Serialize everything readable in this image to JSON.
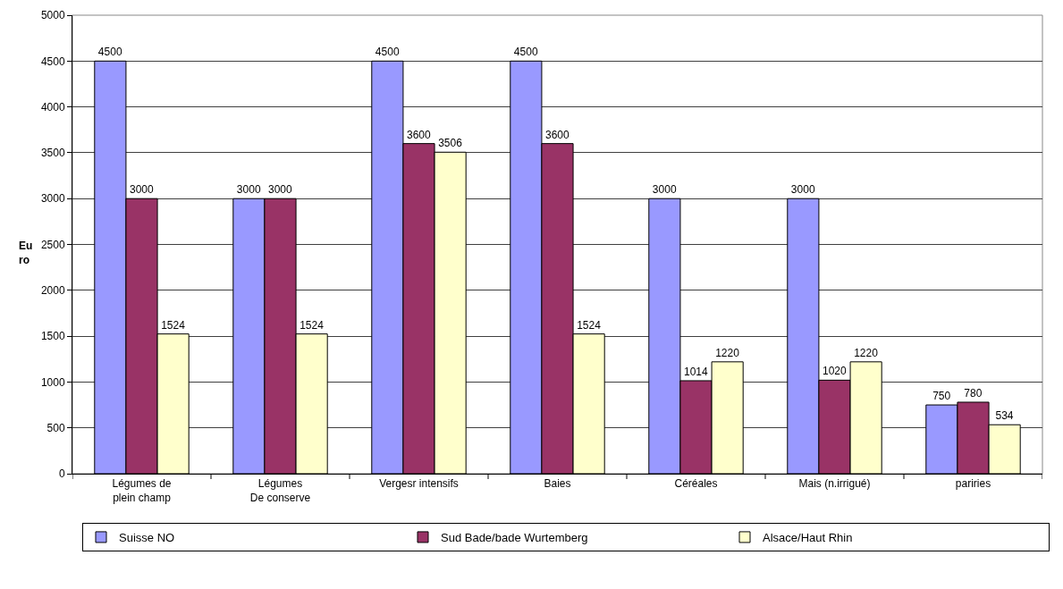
{
  "chart_data": {
    "type": "bar",
    "ylabel": "Eu\nro",
    "categories": [
      "Légumes de\nplein champ",
      "Légumes\nDe conserve",
      "Vergesr intensifs",
      "Baies",
      "Céréales",
      "Mais (n.irrigué)",
      "pariries"
    ],
    "series": [
      {
        "name": "Suisse NO",
        "color": "#9999ff",
        "values": [
          4500,
          3000,
          4500,
          4500,
          3000,
          3000,
          750
        ]
      },
      {
        "name": "Sud Bade/bade Wurtemberg",
        "color": "#993366",
        "values": [
          3000,
          3000,
          3600,
          3600,
          1014,
          1020,
          780
        ]
      },
      {
        "name": "Alsace/Haut Rhin",
        "color": "#ffffcc",
        "values": [
          1524,
          1524,
          3506,
          1524,
          1220,
          1220,
          534
        ]
      }
    ],
    "ylim": [
      0,
      5000
    ],
    "yticks": [
      0,
      500,
      1000,
      1500,
      2000,
      2500,
      3000,
      3500,
      4000,
      4500,
      5000
    ],
    "grid": "y",
    "legend": "bottom",
    "data_labels": true
  }
}
